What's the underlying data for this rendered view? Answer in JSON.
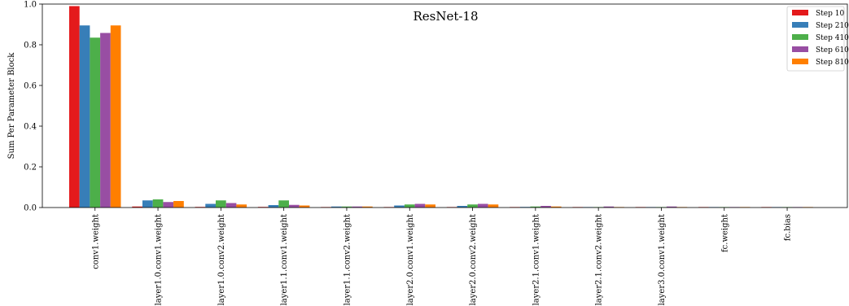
{
  "chart_data": {
    "type": "bar",
    "title": "ResNet-18",
    "xlabel": "",
    "ylabel": "Sum Per Parameter Block",
    "ylim": [
      0,
      1.0
    ],
    "yticks": [
      "0.0",
      "0.2",
      "0.4",
      "0.6",
      "0.8",
      "1.0"
    ],
    "categories": [
      "conv1.weight",
      "layer1.0.conv1.weight",
      "layer1.0.conv2.weight",
      "layer1.1.conv1.weight",
      "layer1.1.conv2.weight",
      "layer2.0.conv1.weight",
      "layer2.0.conv2.weight",
      "layer2.1.conv1.weight",
      "layer2.1.conv2.weight",
      "layer3.0.conv1.weight",
      "fc.weight",
      "fc.bias"
    ],
    "series": [
      {
        "name": "Step 10",
        "color": "#e41a1c",
        "values": [
          0.99,
          0.005,
          0.003,
          0.003,
          0.002,
          0.002,
          0.002,
          0.002,
          0.001,
          0.001,
          0.001,
          0.001
        ]
      },
      {
        "name": "Step 210",
        "color": "#377eb8",
        "values": [
          0.895,
          0.035,
          0.018,
          0.012,
          0.005,
          0.01,
          0.008,
          0.003,
          0.002,
          0.002,
          0.001,
          0.001
        ]
      },
      {
        "name": "Step 410",
        "color": "#4daf4a",
        "values": [
          0.835,
          0.04,
          0.035,
          0.035,
          0.005,
          0.015,
          0.015,
          0.005,
          0.002,
          0.002,
          0.001,
          0.001
        ]
      },
      {
        "name": "Step 610",
        "color": "#984ea3",
        "values": [
          0.858,
          0.027,
          0.022,
          0.013,
          0.005,
          0.018,
          0.018,
          0.008,
          0.005,
          0.005,
          0.001,
          0.001
        ]
      },
      {
        "name": "Step 810",
        "color": "#ff7f00",
        "values": [
          0.895,
          0.032,
          0.015,
          0.01,
          0.005,
          0.015,
          0.015,
          0.005,
          0.002,
          0.002,
          0.001,
          0.001
        ]
      }
    ],
    "legend_position": "top-right",
    "grid": false
  }
}
